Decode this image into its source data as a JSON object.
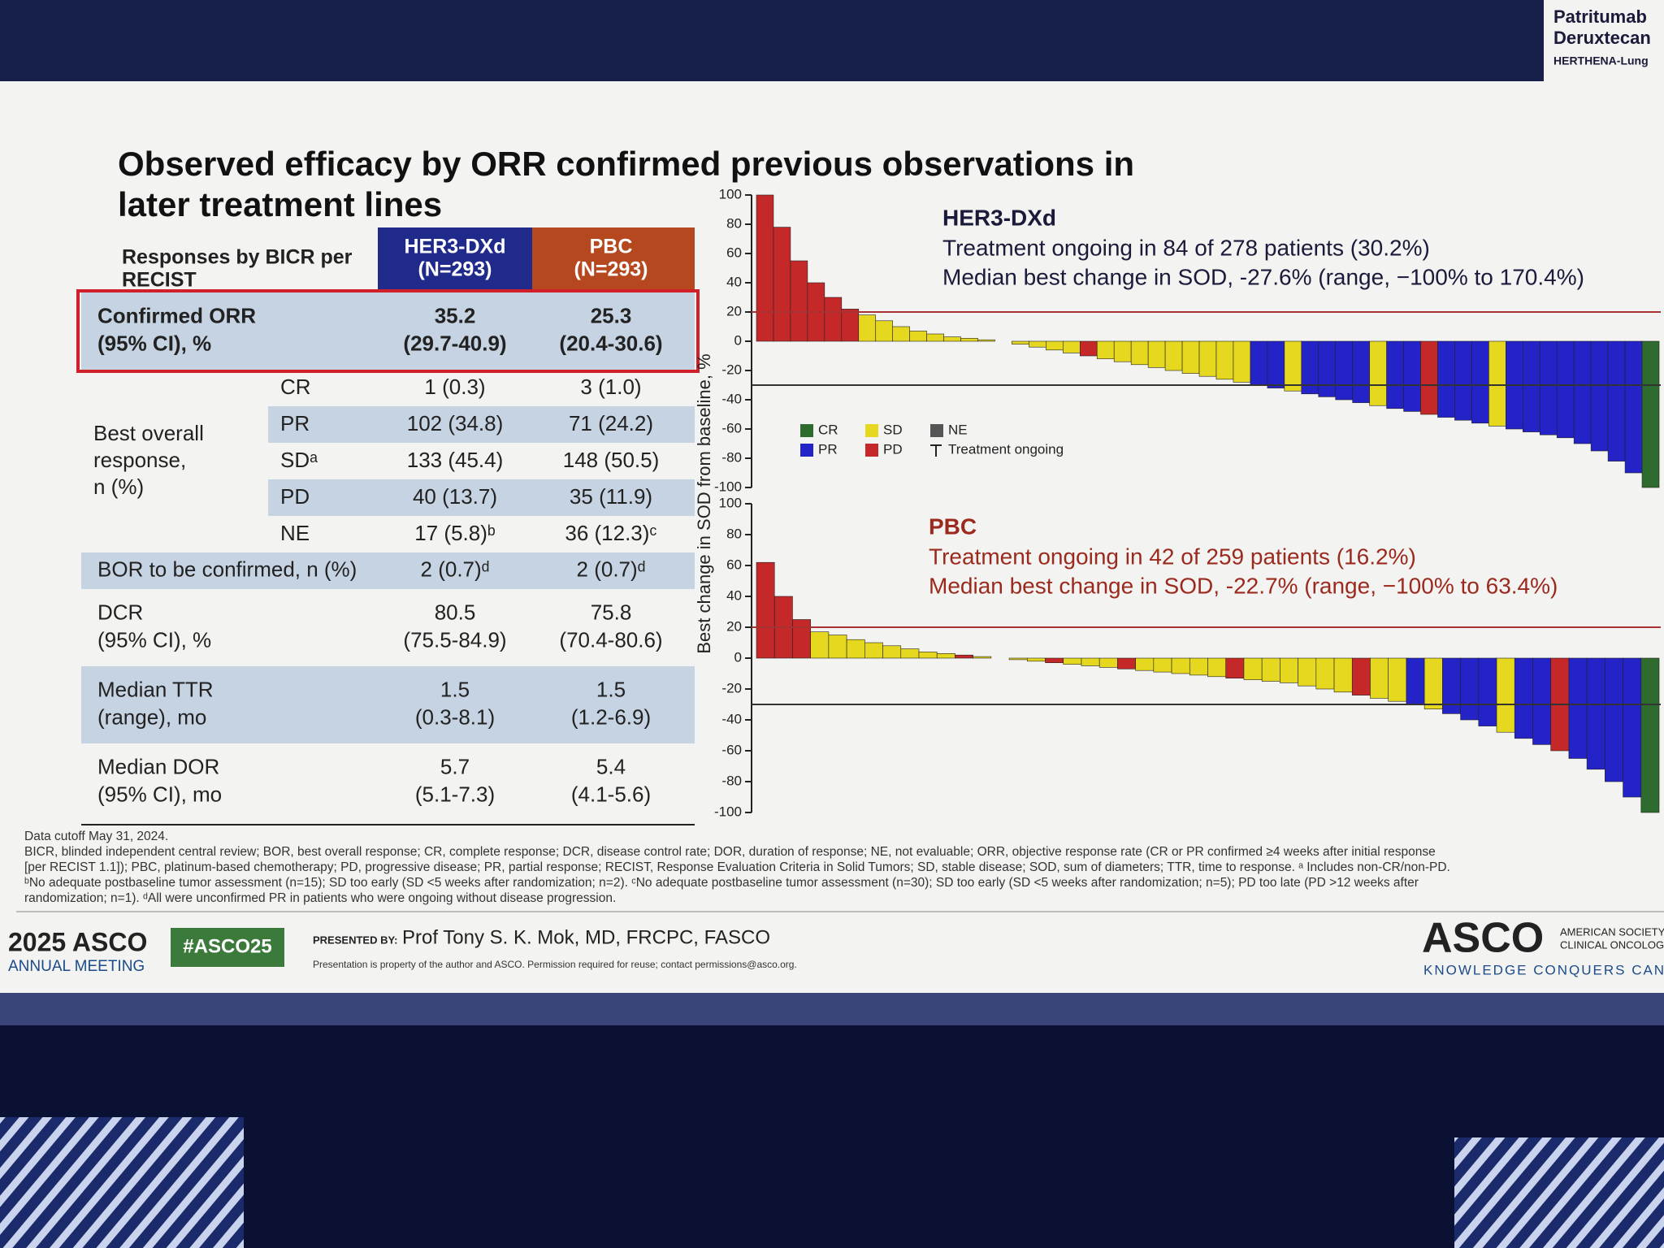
{
  "header": {
    "title": [
      "Observed efficacy by ORR confirmed previous observations in",
      "later treatment lines"
    ],
    "brand": [
      "Patritumab",
      "Deruxtecan",
      "HERTHENA-Lung"
    ]
  },
  "table": {
    "header": {
      "label": [
        "Responses by BICR per",
        "RECIST"
      ],
      "arms": [
        [
          "HER3-DXd",
          "(N=293)"
        ],
        [
          "PBC",
          "(N=293)"
        ]
      ]
    },
    "rows_top": [
      {
        "label": [
          "Confirmed ORR",
          "(95% CI), %"
        ],
        "cells": [
          [
            "35.2",
            "(29.7-40.9)"
          ],
          [
            "25.3",
            "(20.4-30.6)"
          ]
        ]
      }
    ],
    "best_overall_response": {
      "label": [
        "Best overall",
        "response,",
        "n (%)"
      ],
      "rows": [
        {
          "label": "CR",
          "cells": [
            "1 (0.3)",
            "3 (1.0)"
          ]
        },
        {
          "label": "PR",
          "cells": [
            "102 (34.8)",
            "71 (24.2)"
          ]
        },
        {
          "label": "SDᵃ",
          "cells": [
            "133 (45.4)",
            "148 (50.5)"
          ]
        },
        {
          "label": "PD",
          "cells": [
            "40 (13.7)",
            "35 (11.9)"
          ]
        },
        {
          "label": "NE",
          "cells": [
            "17 (5.8)ᵇ",
            "36 (12.3)ᶜ"
          ]
        }
      ]
    },
    "rows_bottom": [
      {
        "label": [
          "BOR to be confirmed, n (%)"
        ],
        "cells": [
          [
            "2 (0.7)ᵈ"
          ],
          [
            "2 (0.7)ᵈ"
          ]
        ]
      },
      {
        "label": [
          "DCR",
          "(95% CI), %"
        ],
        "cells": [
          [
            "80.5",
            "(75.5-84.9)"
          ],
          [
            "75.8",
            "(70.4-80.6)"
          ]
        ]
      },
      {
        "label": [
          "Median TTR",
          "(range), mo"
        ],
        "cells": [
          [
            "1.5",
            "(0.3-8.1)"
          ],
          [
            "1.5",
            "(1.2-6.9)"
          ]
        ]
      },
      {
        "label": [
          "Median DOR",
          "(95% CI), mo"
        ],
        "cells": [
          [
            "5.7",
            "(5.1-7.3)"
          ],
          [
            "5.4",
            "(4.1-5.6)"
          ]
        ]
      }
    ]
  },
  "y_axis_label": "Best change in SOD from baseline, %",
  "legend": {
    "items": [
      {
        "name": "CR",
        "color": "#2e6b2e"
      },
      {
        "name": "SD",
        "color": "#e6d81e"
      },
      {
        "name": "NE",
        "color": "#555555"
      },
      {
        "name": "PR",
        "color": "#2323c8"
      },
      {
        "name": "PD",
        "color": "#c42828"
      }
    ],
    "ongoing": "Treatment ongoing"
  },
  "chart_data": [
    {
      "type": "waterfall",
      "title": "HER3-DXd",
      "annotations": [
        "Treatment ongoing in 84 of 278 patients (30.2%)",
        "Median best change in SOD, -27.6% (range, −100% to 170.4%)"
      ],
      "ylim": [
        -100,
        100
      ],
      "yticks": [
        100,
        80,
        60,
        40,
        20,
        0,
        -20,
        -40,
        -60,
        -80,
        -100
      ],
      "reference_lines": [
        {
          "value": 20,
          "color": "#a83232"
        },
        {
          "value": -30,
          "color": "#333333"
        }
      ],
      "values": [
        100,
        78,
        55,
        40,
        30,
        22,
        18,
        14,
        10,
        7,
        5,
        3,
        2,
        1,
        0,
        -2,
        -4,
        -6,
        -8,
        -10,
        -12,
        -14,
        -16,
        -18,
        -20,
        -22,
        -24,
        -26,
        -28,
        -30,
        -32,
        -34,
        -36,
        -38,
        -40,
        -42,
        -44,
        -46,
        -48,
        -50,
        -52,
        -54,
        -56,
        -58,
        -60,
        -62,
        -64,
        -66,
        -70,
        -75,
        -82,
        -90,
        -100
      ],
      "responses": [
        "PD",
        "PD",
        "PD",
        "PD",
        "PD",
        "PD",
        "SD",
        "SD",
        "SD",
        "SD",
        "SD",
        "SD",
        "SD",
        "SD",
        "SD",
        "SD",
        "SD",
        "SD",
        "SD",
        "PD",
        "SD",
        "SD",
        "SD",
        "SD",
        "SD",
        "SD",
        "SD",
        "SD",
        "SD",
        "PR",
        "PR",
        "SD",
        "PR",
        "PR",
        "PR",
        "PR",
        "SD",
        "PR",
        "PR",
        "PD",
        "PR",
        "PR",
        "PR",
        "SD",
        "PR",
        "PR",
        "PR",
        "PR",
        "PR",
        "PR",
        "PR",
        "PR",
        "CR"
      ]
    },
    {
      "type": "waterfall",
      "title": "PBC",
      "annotations": [
        "Treatment ongoing in 42 of 259 patients (16.2%)",
        "Median best change in SOD, -22.7% (range, −100% to 63.4%)"
      ],
      "ylim": [
        -100,
        100
      ],
      "yticks": [
        100,
        80,
        60,
        40,
        20,
        0,
        -20,
        -40,
        -60,
        -80,
        -100
      ],
      "reference_lines": [
        {
          "value": 20,
          "color": "#a83232"
        },
        {
          "value": -30,
          "color": "#333333"
        }
      ],
      "values": [
        62,
        40,
        25,
        17,
        15,
        12,
        10,
        8,
        6,
        4,
        3,
        2,
        1,
        0,
        -1,
        -2,
        -3,
        -4,
        -5,
        -6,
        -7,
        -8,
        -9,
        -10,
        -11,
        -12,
        -13,
        -14,
        -15,
        -16,
        -18,
        -20,
        -22,
        -24,
        -26,
        -28,
        -30,
        -33,
        -36,
        -40,
        -44,
        -48,
        -52,
        -56,
        -60,
        -65,
        -72,
        -80,
        -90,
        -100
      ],
      "responses": [
        "PD",
        "PD",
        "PD",
        "SD",
        "SD",
        "SD",
        "SD",
        "SD",
        "SD",
        "SD",
        "SD",
        "PD",
        "SD",
        "SD",
        "SD",
        "SD",
        "PD",
        "SD",
        "SD",
        "SD",
        "PD",
        "SD",
        "SD",
        "SD",
        "SD",
        "SD",
        "PD",
        "SD",
        "SD",
        "SD",
        "SD",
        "SD",
        "SD",
        "PD",
        "SD",
        "SD",
        "PR",
        "SD",
        "PR",
        "PR",
        "PR",
        "SD",
        "PR",
        "PR",
        "PD",
        "PR",
        "PR",
        "PR",
        "PR",
        "CR"
      ]
    }
  ],
  "footnotes": [
    "Data cutoff May 31, 2024.",
    "BICR, blinded independent central review; BOR, best overall response; CR, complete response; DCR, disease control rate; DOR, duration of response; NE, not evaluable; ORR, objective response rate (CR or PR confirmed ≥4 weeks after initial response",
    "[per RECIST 1.1]); PBC, platinum-based chemotherapy; PD, progressive disease; PR, partial response; RECIST, Response Evaluation Criteria in Solid Tumors; SD, stable disease; SOD, sum of diameters; TTR, time to response. ᵃ Includes non-CR/non-PD.",
    "ᵇNo adequate postbaseline tumor assessment (n=15); SD too early (SD <5 weeks after randomization; n=2). ᶜNo adequate postbaseline tumor assessment (n=30); SD too early (SD <5 weeks after randomization; n=5); PD too late (PD >12 weeks after",
    "randomization; n=1). ᵈAll were unconfirmed PR in patients who were ongoing without disease progression."
  ],
  "footer": {
    "meeting": [
      "2025 ASCO",
      "ANNUAL MEETING"
    ],
    "hashtag": "#ASCO25",
    "presented_by_label": "PRESENTED BY:",
    "presenter": "Prof Tony S. K. Mok, MD, FRCPC, FASCO",
    "notice": "Presentation is property of the author and ASCO. Permission required for reuse; contact permissions@asco.org.",
    "logo": "ASCO",
    "society": [
      "AMERICAN SOCIETY OF",
      "CLINICAL ONCOLOGY"
    ],
    "tagline": "KNOWLEDGE CONQUERS CANCER"
  }
}
